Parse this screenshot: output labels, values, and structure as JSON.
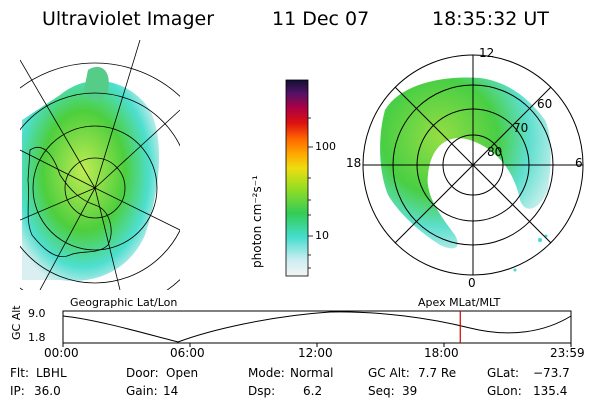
{
  "header": {
    "instrument": "Ultraviolet Imager",
    "date": "11 Dec 07",
    "time": "18:35:32 UT"
  },
  "colorbar": {
    "unit_label": "photon cm⁻²s⁻¹",
    "ticks": [
      "100",
      "10"
    ]
  },
  "polar_plot": {
    "mlt_labels": [
      "12",
      "18",
      "6",
      "0"
    ],
    "lat_labels": [
      "60",
      "70",
      "80"
    ]
  },
  "timeline": {
    "left_label": "Geographic Lat/Lon",
    "right_label": "Apex MLat/MLT",
    "y_axis_label": "GC Alt",
    "y_ticks": [
      "9.0",
      "1.8"
    ],
    "x_ticks": [
      "00:00",
      "06:00",
      "12:00",
      "18:00",
      "23:59"
    ],
    "current_time_fraction": 0.782
  },
  "status": {
    "flt_label": "Flt:",
    "flt_value": "LBHL",
    "ip_label": "IP:",
    "ip_value": "36.0",
    "door_label": "Door:",
    "door_value": "Open",
    "gain_label": "Gain:",
    "gain_value": "14",
    "mode_label": "Mode:",
    "mode_value": "Normal",
    "dsp_label": "Dsp:",
    "dsp_value": "6.2",
    "gcalt_label": "GC Alt:",
    "gcalt_value": "7.7 Re",
    "seq_label": "Seq:",
    "seq_value": "39",
    "glat_label": "GLat:",
    "glat_value": "−73.7",
    "glon_label": "GLon:",
    "glon_value": "135.4"
  },
  "colors": {
    "aurora_green": "#33cc33",
    "aurora_lime": "#88dd33",
    "aurora_cyan": "#44ddcc",
    "marker_red": "#cc0000"
  }
}
